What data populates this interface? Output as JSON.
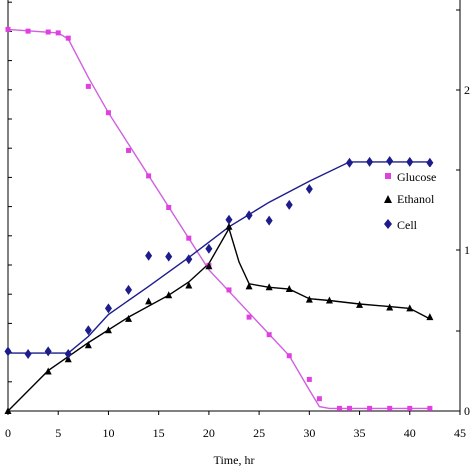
{
  "chart_data": {
    "type": "line",
    "title": "",
    "xlabel": "Time, hr",
    "ylabel_left": "",
    "ylabel_right": "",
    "xlim": [
      0,
      45
    ],
    "x_ticks": [
      "0",
      "5",
      "10",
      "15",
      "20",
      "25",
      "30",
      "35",
      "40",
      "45"
    ],
    "right_tick_labels_visible": [
      "0",
      "",
      "1",
      "",
      "2"
    ],
    "grid": false,
    "legend_position": "right",
    "series": [
      {
        "name": "Glucose",
        "axis": "left",
        "marker": "square",
        "color": "#e040e0",
        "line_color": "#d060e0",
        "points": [
          [
            0,
            4.35
          ],
          [
            2,
            4.33
          ],
          [
            4,
            4.32
          ],
          [
            5,
            4.31
          ],
          [
            6,
            4.25
          ],
          [
            8,
            3.7
          ],
          [
            10,
            3.4
          ],
          [
            12,
            2.97
          ],
          [
            14,
            2.68
          ],
          [
            16,
            2.32
          ],
          [
            18,
            1.97
          ],
          [
            20,
            1.66
          ],
          [
            22,
            1.38
          ],
          [
            24,
            1.07
          ],
          [
            26,
            0.87
          ],
          [
            28,
            0.63
          ],
          [
            30,
            0.36
          ],
          [
            31,
            0.14
          ],
          [
            33,
            0.03
          ],
          [
            34,
            0.03
          ],
          [
            36,
            0.03
          ],
          [
            38,
            0.03
          ],
          [
            40,
            0.03
          ],
          [
            42,
            0.03
          ]
        ]
      },
      {
        "name": "Ethanol",
        "axis": "left",
        "marker": "triangle",
        "color": "#000000",
        "line_color": "#000000",
        "points": [
          [
            0,
            0
          ],
          [
            4,
            0.45
          ],
          [
            6,
            0.59
          ],
          [
            8,
            0.75
          ],
          [
            10,
            0.92
          ],
          [
            12,
            1.05
          ],
          [
            14,
            1.25
          ],
          [
            16,
            1.32
          ],
          [
            18,
            1.43
          ],
          [
            20,
            1.65
          ],
          [
            22,
            2.1
          ],
          [
            24,
            1.42
          ],
          [
            26,
            1.41
          ],
          [
            28,
            1.39
          ],
          [
            30,
            1.27
          ],
          [
            32,
            1.26
          ],
          [
            35,
            1.21
          ],
          [
            38,
            1.18
          ],
          [
            40,
            1.17
          ],
          [
            42,
            1.07
          ]
        ]
      },
      {
        "name": "Cell",
        "axis": "left",
        "marker": "diamond",
        "color": "#1c1c8c",
        "line_color": "#1c1c8c",
        "points": [
          [
            0,
            0.68
          ],
          [
            2,
            0.65
          ],
          [
            4,
            0.68
          ],
          [
            6,
            0.65
          ],
          [
            8,
            0.92
          ],
          [
            10,
            1.17
          ],
          [
            12,
            1.38
          ],
          [
            14,
            1.77
          ],
          [
            16,
            1.76
          ],
          [
            18,
            1.73
          ],
          [
            20,
            1.85
          ],
          [
            22,
            2.18
          ],
          [
            24,
            2.23
          ],
          [
            26,
            2.17
          ],
          [
            28,
            2.35
          ],
          [
            30,
            2.53
          ],
          [
            34,
            2.83
          ],
          [
            36,
            2.84
          ],
          [
            38,
            2.85
          ],
          [
            40,
            2.84
          ],
          [
            42,
            2.83
          ]
        ]
      }
    ],
    "fit_lines": [
      {
        "series": "Glucose",
        "points": [
          [
            0,
            4.35
          ],
          [
            5,
            4.31
          ],
          [
            6,
            4.24
          ],
          [
            8,
            3.8
          ],
          [
            10,
            3.4
          ],
          [
            20,
            1.61
          ],
          [
            28,
            0.63
          ],
          [
            30,
            0.24
          ],
          [
            31,
            0.05
          ],
          [
            32,
            0.03
          ],
          [
            42,
            0.03
          ]
        ]
      },
      {
        "series": "Cell",
        "points": [
          [
            0,
            0.66
          ],
          [
            6,
            0.66
          ],
          [
            8,
            0.85
          ],
          [
            10,
            1.1
          ],
          [
            14,
            1.42
          ],
          [
            18,
            1.75
          ],
          [
            22,
            2.1
          ],
          [
            26,
            2.38
          ],
          [
            30,
            2.62
          ],
          [
            34,
            2.84
          ],
          [
            42,
            2.84
          ]
        ]
      },
      {
        "series": "Ethanol",
        "points": [
          [
            0,
            0
          ],
          [
            4,
            0.46
          ],
          [
            8,
            0.78
          ],
          [
            12,
            1.07
          ],
          [
            16,
            1.32
          ],
          [
            18,
            1.47
          ],
          [
            20,
            1.68
          ],
          [
            22,
            2.08
          ],
          [
            23,
            1.7
          ],
          [
            24,
            1.45
          ],
          [
            26,
            1.41
          ],
          [
            28,
            1.39
          ],
          [
            30,
            1.28
          ],
          [
            32,
            1.26
          ],
          [
            35,
            1.22
          ],
          [
            38,
            1.19
          ],
          [
            40,
            1.17
          ],
          [
            42,
            1.05
          ]
        ]
      }
    ]
  }
}
